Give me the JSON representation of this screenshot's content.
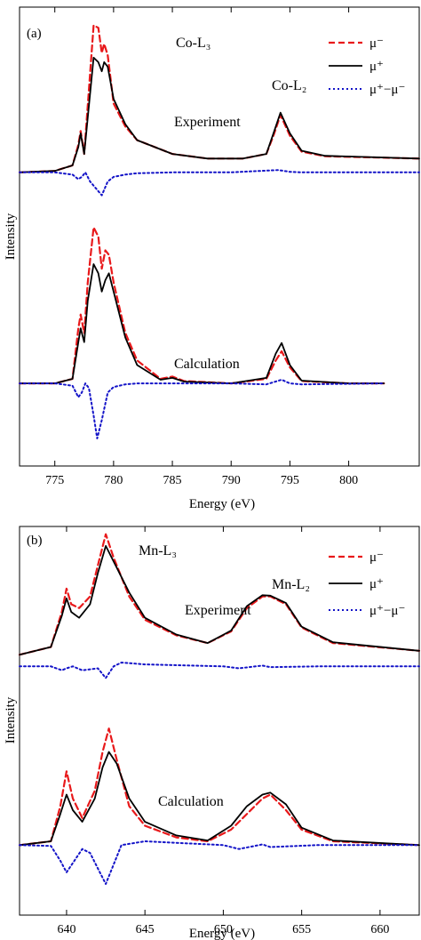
{
  "figure": {
    "legend_labels": {
      "mu_minus": "μ⁻",
      "mu_plus": "μ⁺",
      "diff": "μ⁺−μ⁻"
    },
    "series_colors": {
      "mu_minus": "#e8191b",
      "mu_plus": "#000000",
      "diff": "#1414c8"
    },
    "legend_placement": "top-right"
  },
  "chart_data": [
    {
      "type": "line",
      "panel_label": "(a)",
      "xlabel": "Energy (eV)",
      "ylabel": "Intensity",
      "xlim": [
        772,
        806
      ],
      "ylim": [
        0,
        1
      ],
      "xticks": [
        775,
        780,
        785,
        790,
        795,
        800
      ],
      "grid": false,
      "edge_labels": [
        "Co-L₃",
        "Co-L₂"
      ],
      "groups": [
        {
          "label": "Experiment",
          "series": [
            {
              "key": "mu_minus",
              "x": [
                772,
                775,
                776.5,
                777,
                777.2,
                777.5,
                778.3,
                778.7,
                779,
                779.2,
                779.5,
                780,
                781,
                782,
                785,
                788,
                791,
                793,
                793.6,
                794.2,
                795,
                796,
                798,
                806
              ],
              "y": [
                0.64,
                0.643,
                0.655,
                0.7,
                0.73,
                0.68,
                0.96,
                0.955,
                0.9,
                0.92,
                0.895,
                0.79,
                0.74,
                0.71,
                0.68,
                0.67,
                0.67,
                0.68,
                0.72,
                0.765,
                0.72,
                0.685,
                0.675,
                0.67
              ]
            },
            {
              "key": "mu_plus",
              "x": [
                772,
                775,
                776.5,
                777,
                777.2,
                777.5,
                778.3,
                778.7,
                779,
                779.2,
                779.5,
                780,
                781,
                782,
                785,
                788,
                791,
                793,
                793.6,
                794.2,
                795,
                796,
                798,
                806
              ],
              "y": [
                0.64,
                0.643,
                0.655,
                0.695,
                0.725,
                0.68,
                0.89,
                0.88,
                0.86,
                0.88,
                0.87,
                0.8,
                0.745,
                0.71,
                0.68,
                0.67,
                0.67,
                0.68,
                0.725,
                0.77,
                0.725,
                0.687,
                0.676,
                0.67
              ]
            },
            {
              "key": "diff",
              "x": [
                772,
                775,
                776.5,
                777,
                777.3,
                777.6,
                778,
                778.5,
                779,
                779.5,
                780,
                781,
                782,
                785,
                790,
                794,
                795,
                796,
                806
              ],
              "y": [
                0.64,
                0.64,
                0.635,
                0.625,
                0.63,
                0.64,
                0.62,
                0.605,
                0.59,
                0.62,
                0.63,
                0.635,
                0.638,
                0.64,
                0.64,
                0.645,
                0.641,
                0.64,
                0.64
              ]
            }
          ]
        },
        {
          "label": "Calculation",
          "series": [
            {
              "key": "mu_minus",
              "x": [
                772,
                775,
                776.5,
                777,
                777.2,
                777.5,
                777.8,
                778.3,
                778.7,
                779,
                779.3,
                779.6,
                780,
                781,
                782,
                784,
                785,
                786,
                790,
                793,
                793.8,
                794.3,
                795,
                796,
                800,
                803
              ],
              "y": [
                0.18,
                0.18,
                0.19,
                0.3,
                0.33,
                0.29,
                0.4,
                0.52,
                0.5,
                0.43,
                0.47,
                0.46,
                0.4,
                0.29,
                0.23,
                0.19,
                0.195,
                0.185,
                0.18,
                0.19,
                0.23,
                0.25,
                0.215,
                0.185,
                0.18,
                0.18
              ]
            },
            {
              "key": "mu_plus",
              "x": [
                772,
                775,
                776.5,
                777,
                777.2,
                777.5,
                777.8,
                778.3,
                778.7,
                779,
                779.3,
                779.6,
                780,
                781,
                782,
                784,
                785,
                786,
                790,
                793,
                793.8,
                794.3,
                795,
                796,
                800,
                803
              ],
              "y": [
                0.18,
                0.18,
                0.19,
                0.27,
                0.3,
                0.27,
                0.36,
                0.44,
                0.42,
                0.38,
                0.405,
                0.42,
                0.38,
                0.28,
                0.22,
                0.188,
                0.192,
                0.184,
                0.18,
                0.192,
                0.245,
                0.268,
                0.22,
                0.186,
                0.18,
                0.18
              ]
            },
            {
              "key": "diff",
              "x": [
                772,
                775,
                776.5,
                777,
                777.3,
                777.6,
                777.9,
                778.3,
                778.6,
                779,
                779.5,
                780,
                781,
                782,
                785,
                790,
                793,
                794.3,
                795,
                796,
                803
              ],
              "y": [
                0.18,
                0.18,
                0.175,
                0.15,
                0.16,
                0.18,
                0.17,
                0.11,
                0.06,
                0.1,
                0.16,
                0.172,
                0.178,
                0.18,
                0.18,
                0.18,
                0.178,
                0.188,
                0.18,
                0.178,
                0.18
              ]
            }
          ]
        }
      ]
    },
    {
      "type": "line",
      "panel_label": "(b)",
      "xlabel": "Energy (eV)",
      "ylabel": "Intensity",
      "xlim": [
        637,
        662.5
      ],
      "ylim": [
        0,
        1
      ],
      "xticks": [
        640,
        645,
        650,
        655,
        660
      ],
      "grid": false,
      "edge_labels": [
        "Mn-L₃",
        "Mn-L₂"
      ],
      "groups": [
        {
          "label": "Experiment",
          "series": [
            {
              "key": "mu_minus",
              "x": [
                637,
                639,
                639.7,
                640,
                640.3,
                640.8,
                641.5,
                642,
                642.5,
                643,
                644,
                645,
                647,
                649,
                650.5,
                651.5,
                652.5,
                653,
                654,
                655,
                657,
                662.5
              ],
              "y": [
                0.67,
                0.69,
                0.78,
                0.84,
                0.8,
                0.79,
                0.82,
                0.9,
                0.98,
                0.92,
                0.82,
                0.76,
                0.72,
                0.7,
                0.73,
                0.79,
                0.82,
                0.82,
                0.8,
                0.74,
                0.7,
                0.68
              ]
            },
            {
              "key": "mu_plus",
              "x": [
                637,
                639,
                639.7,
                640,
                640.3,
                640.8,
                641.5,
                642,
                642.5,
                643,
                644,
                645,
                647,
                649,
                650.5,
                651.5,
                652.5,
                653,
                654,
                655,
                657,
                662.5
              ],
              "y": [
                0.67,
                0.69,
                0.77,
                0.815,
                0.78,
                0.765,
                0.8,
                0.88,
                0.95,
                0.91,
                0.83,
                0.765,
                0.722,
                0.7,
                0.732,
                0.795,
                0.823,
                0.822,
                0.803,
                0.742,
                0.702,
                0.68
              ]
            },
            {
              "key": "diff",
              "x": [
                637,
                639,
                639.7,
                640,
                640.4,
                641,
                642,
                642.5,
                643,
                643.5,
                645,
                650,
                651,
                652.5,
                653,
                656,
                662.5
              ],
              "y": [
                0.64,
                0.64,
                0.63,
                0.635,
                0.64,
                0.63,
                0.635,
                0.61,
                0.64,
                0.65,
                0.645,
                0.64,
                0.635,
                0.642,
                0.638,
                0.64,
                0.64
              ]
            }
          ]
        },
        {
          "label": "Calculation",
          "series": [
            {
              "key": "mu_minus",
              "x": [
                637,
                639,
                639.6,
                640,
                640.4,
                641,
                641.8,
                642.3,
                642.7,
                643.2,
                644,
                645,
                647,
                649,
                650.5,
                651.5,
                652.5,
                653,
                654,
                655,
                657,
                662.5
              ],
              "y": [
                0.18,
                0.19,
                0.28,
                0.37,
                0.3,
                0.25,
                0.32,
                0.42,
                0.48,
                0.4,
                0.28,
                0.23,
                0.2,
                0.19,
                0.22,
                0.26,
                0.3,
                0.31,
                0.27,
                0.22,
                0.19,
                0.18
              ]
            },
            {
              "key": "mu_plus",
              "x": [
                637,
                639,
                639.6,
                640,
                640.4,
                641,
                641.8,
                642.3,
                642.7,
                643.2,
                644,
                645,
                647,
                649,
                650.5,
                651.5,
                652.5,
                653,
                654,
                655,
                657,
                662.5
              ],
              "y": [
                0.18,
                0.19,
                0.26,
                0.31,
                0.27,
                0.24,
                0.3,
                0.38,
                0.42,
                0.39,
                0.3,
                0.24,
                0.205,
                0.192,
                0.23,
                0.28,
                0.31,
                0.315,
                0.285,
                0.225,
                0.192,
                0.18
              ]
            },
            {
              "key": "diff",
              "x": [
                637,
                639,
                639.6,
                640,
                640.5,
                641,
                641.5,
                642,
                642.5,
                643,
                643.5,
                645,
                650,
                651,
                652.5,
                653,
                656,
                662.5
              ],
              "y": [
                0.18,
                0.178,
                0.14,
                0.11,
                0.14,
                0.17,
                0.16,
                0.12,
                0.08,
                0.13,
                0.18,
                0.19,
                0.18,
                0.17,
                0.182,
                0.175,
                0.18,
                0.18
              ]
            }
          ]
        }
      ]
    }
  ]
}
